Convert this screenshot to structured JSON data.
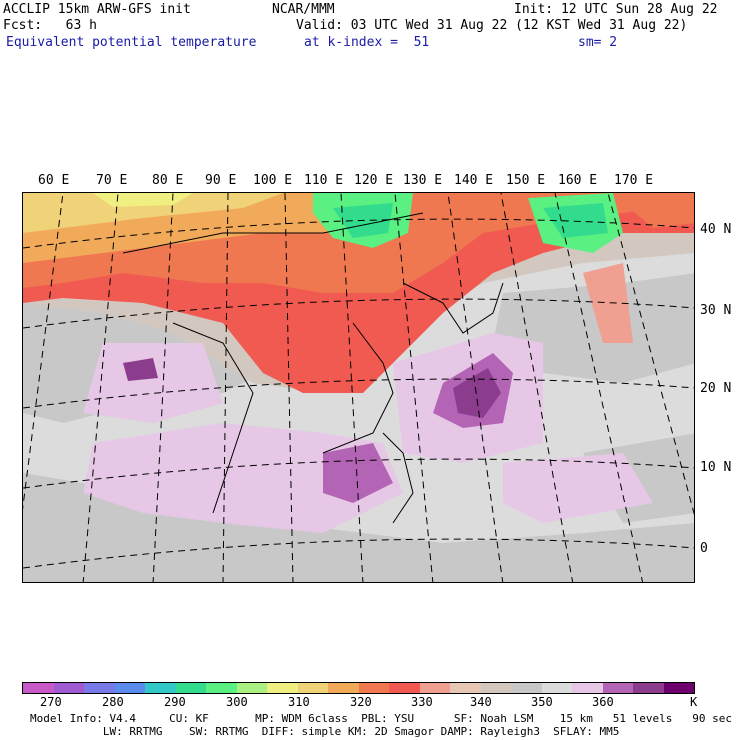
{
  "header": {
    "line1_left": "ACCLIP 15km ARW-GFS init",
    "line1_mid": "NCAR/MMM",
    "line1_right": "Init: 12 UTC Sun 28 Aug 22",
    "line2_left": "Fcst:   63 h",
    "line2_right": "Valid: 03 UTC Wed 31 Aug 22 (12 KST Wed 31 Aug 22)",
    "line3_left": "Equivalent potential temperature",
    "line3_mid": "at k-index =  51",
    "line3_right": "sm= 2"
  },
  "lon_labels": [
    "60 E",
    "70 E",
    "80 E",
    "90 E",
    "100 E",
    "110 E",
    "120 E",
    "130 E",
    "140 E",
    "150 E",
    "160 E",
    "170 E"
  ],
  "lat_labels": [
    "40 N",
    "30 N",
    "20 N",
    "10 N",
    "0"
  ],
  "colorbar": {
    "colors": [
      "#c85ac8",
      "#a05ad2",
      "#7878e6",
      "#5a8cf0",
      "#32c8c8",
      "#32dc8c",
      "#5af082",
      "#aaf082",
      "#f0f082",
      "#f0d278",
      "#f0aa5a",
      "#f07850",
      "#f05a50",
      "#f0a090",
      "#e6c8b4",
      "#d2c8c0",
      "#c8c8c8",
      "#dcdcdc",
      "#e6c8e6",
      "#b464b4",
      "#8c3c8c",
      "#6e006e"
    ],
    "labels": [
      "270",
      "280",
      "290",
      "300",
      "310",
      "320",
      "330",
      "340",
      "350",
      "360",
      "K"
    ]
  },
  "footer": {
    "line1": "Model Info: V4.4     CU: KF       MP: WDM 6class  PBL: YSU      SF: Noah LSM    15 km   51 levels   90 sec",
    "line2": "           LW: RRTMG    SW: RRTMG  DIFF: simple KM: 2D Smagor DAMP: Rayleigh3  SFLAY: MM5"
  }
}
